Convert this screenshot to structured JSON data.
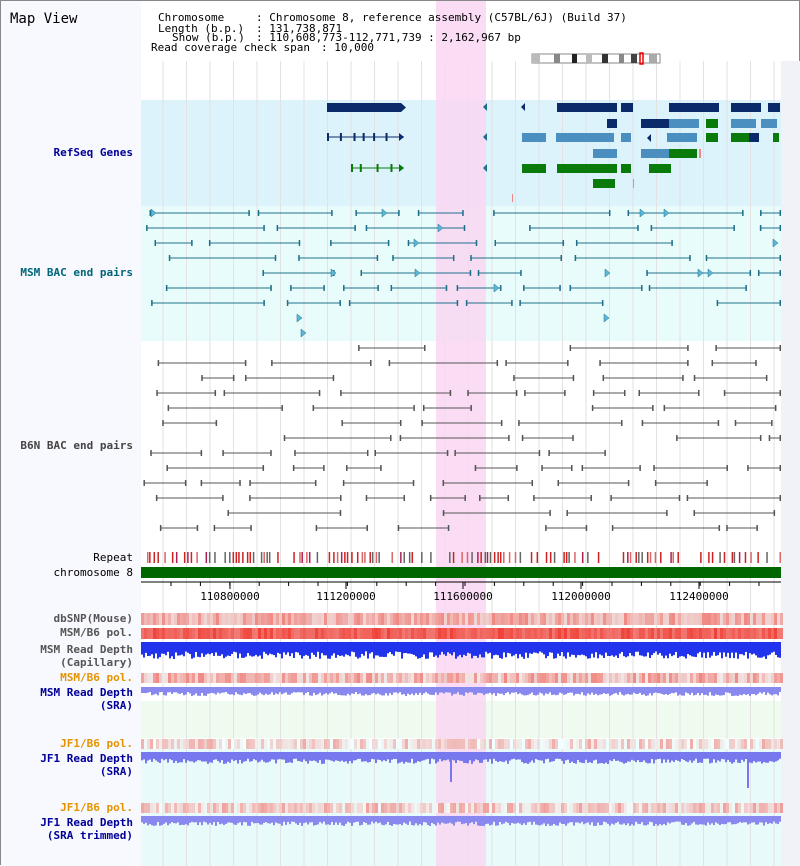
{
  "view": {
    "title": "Map View",
    "chromosome_label": "Chromosome",
    "chromosome_value": ": Chromosome 8, reference assembly (C57BL/6J) (Build 37)",
    "length_label": "Length (b.p.)",
    "length_value": ": 131,738,871",
    "show_label": "Show (b.p.)",
    "show_value": ": 110,608,773-112,771,739 : 2,162,967 bp",
    "coverage_label": "Read coverage check span",
    "coverage_value": ": 10,000"
  },
  "tracks": {
    "refseq": "RefSeq Genes",
    "msm_bac": "MSM BAC end pairs",
    "b6n_bac": "B6N BAC end pairs",
    "repeat": "Repeat",
    "chromosome": "chromosome 8",
    "dbsnp": "dbSNP(Mouse)",
    "msm_b6_pol_1": "MSM/B6 pol.",
    "msm_depth_cap_1": "MSM Read Depth",
    "msm_depth_cap_2": "(Capillary)",
    "msm_b6_pol_2": "MSM/B6 pol.",
    "msm_depth_sra_1": "MSM Read Depth",
    "msm_depth_sra_2": "(SRA)",
    "jf1_b6_pol_1": "JF1/B6 pol.",
    "jf1_depth_sra_1": "JF1 Read Depth",
    "jf1_depth_sra_2": "(SRA)",
    "jf1_b6_pol_2": "JF1/B6 pol.",
    "jf1_depth_trim_1": "JF1 Read Depth",
    "jf1_depth_trim_2": "(SRA trimmed)"
  },
  "axis": {
    "ticks": [
      "110800000",
      "111200000",
      "111600000",
      "112000000",
      "112400000"
    ]
  },
  "colors": {
    "refseq_bg": "#ddf3fb",
    "bac_bg": "#e8fcfc",
    "highlight": "#f9d7f2",
    "chrom_bar": "#006600",
    "navy": "#0a2a6a",
    "teal_line": "#1f6f8a",
    "gray_line": "#555555",
    "green_gene": "#0a7a0a",
    "blue_gene": "#4a8fc0",
    "depth_blue": "#2233ee",
    "depth_light": "#8888ee",
    "jf1_label": "#e59400",
    "label_navy": "#000099",
    "label_teal": "#006677"
  }
}
